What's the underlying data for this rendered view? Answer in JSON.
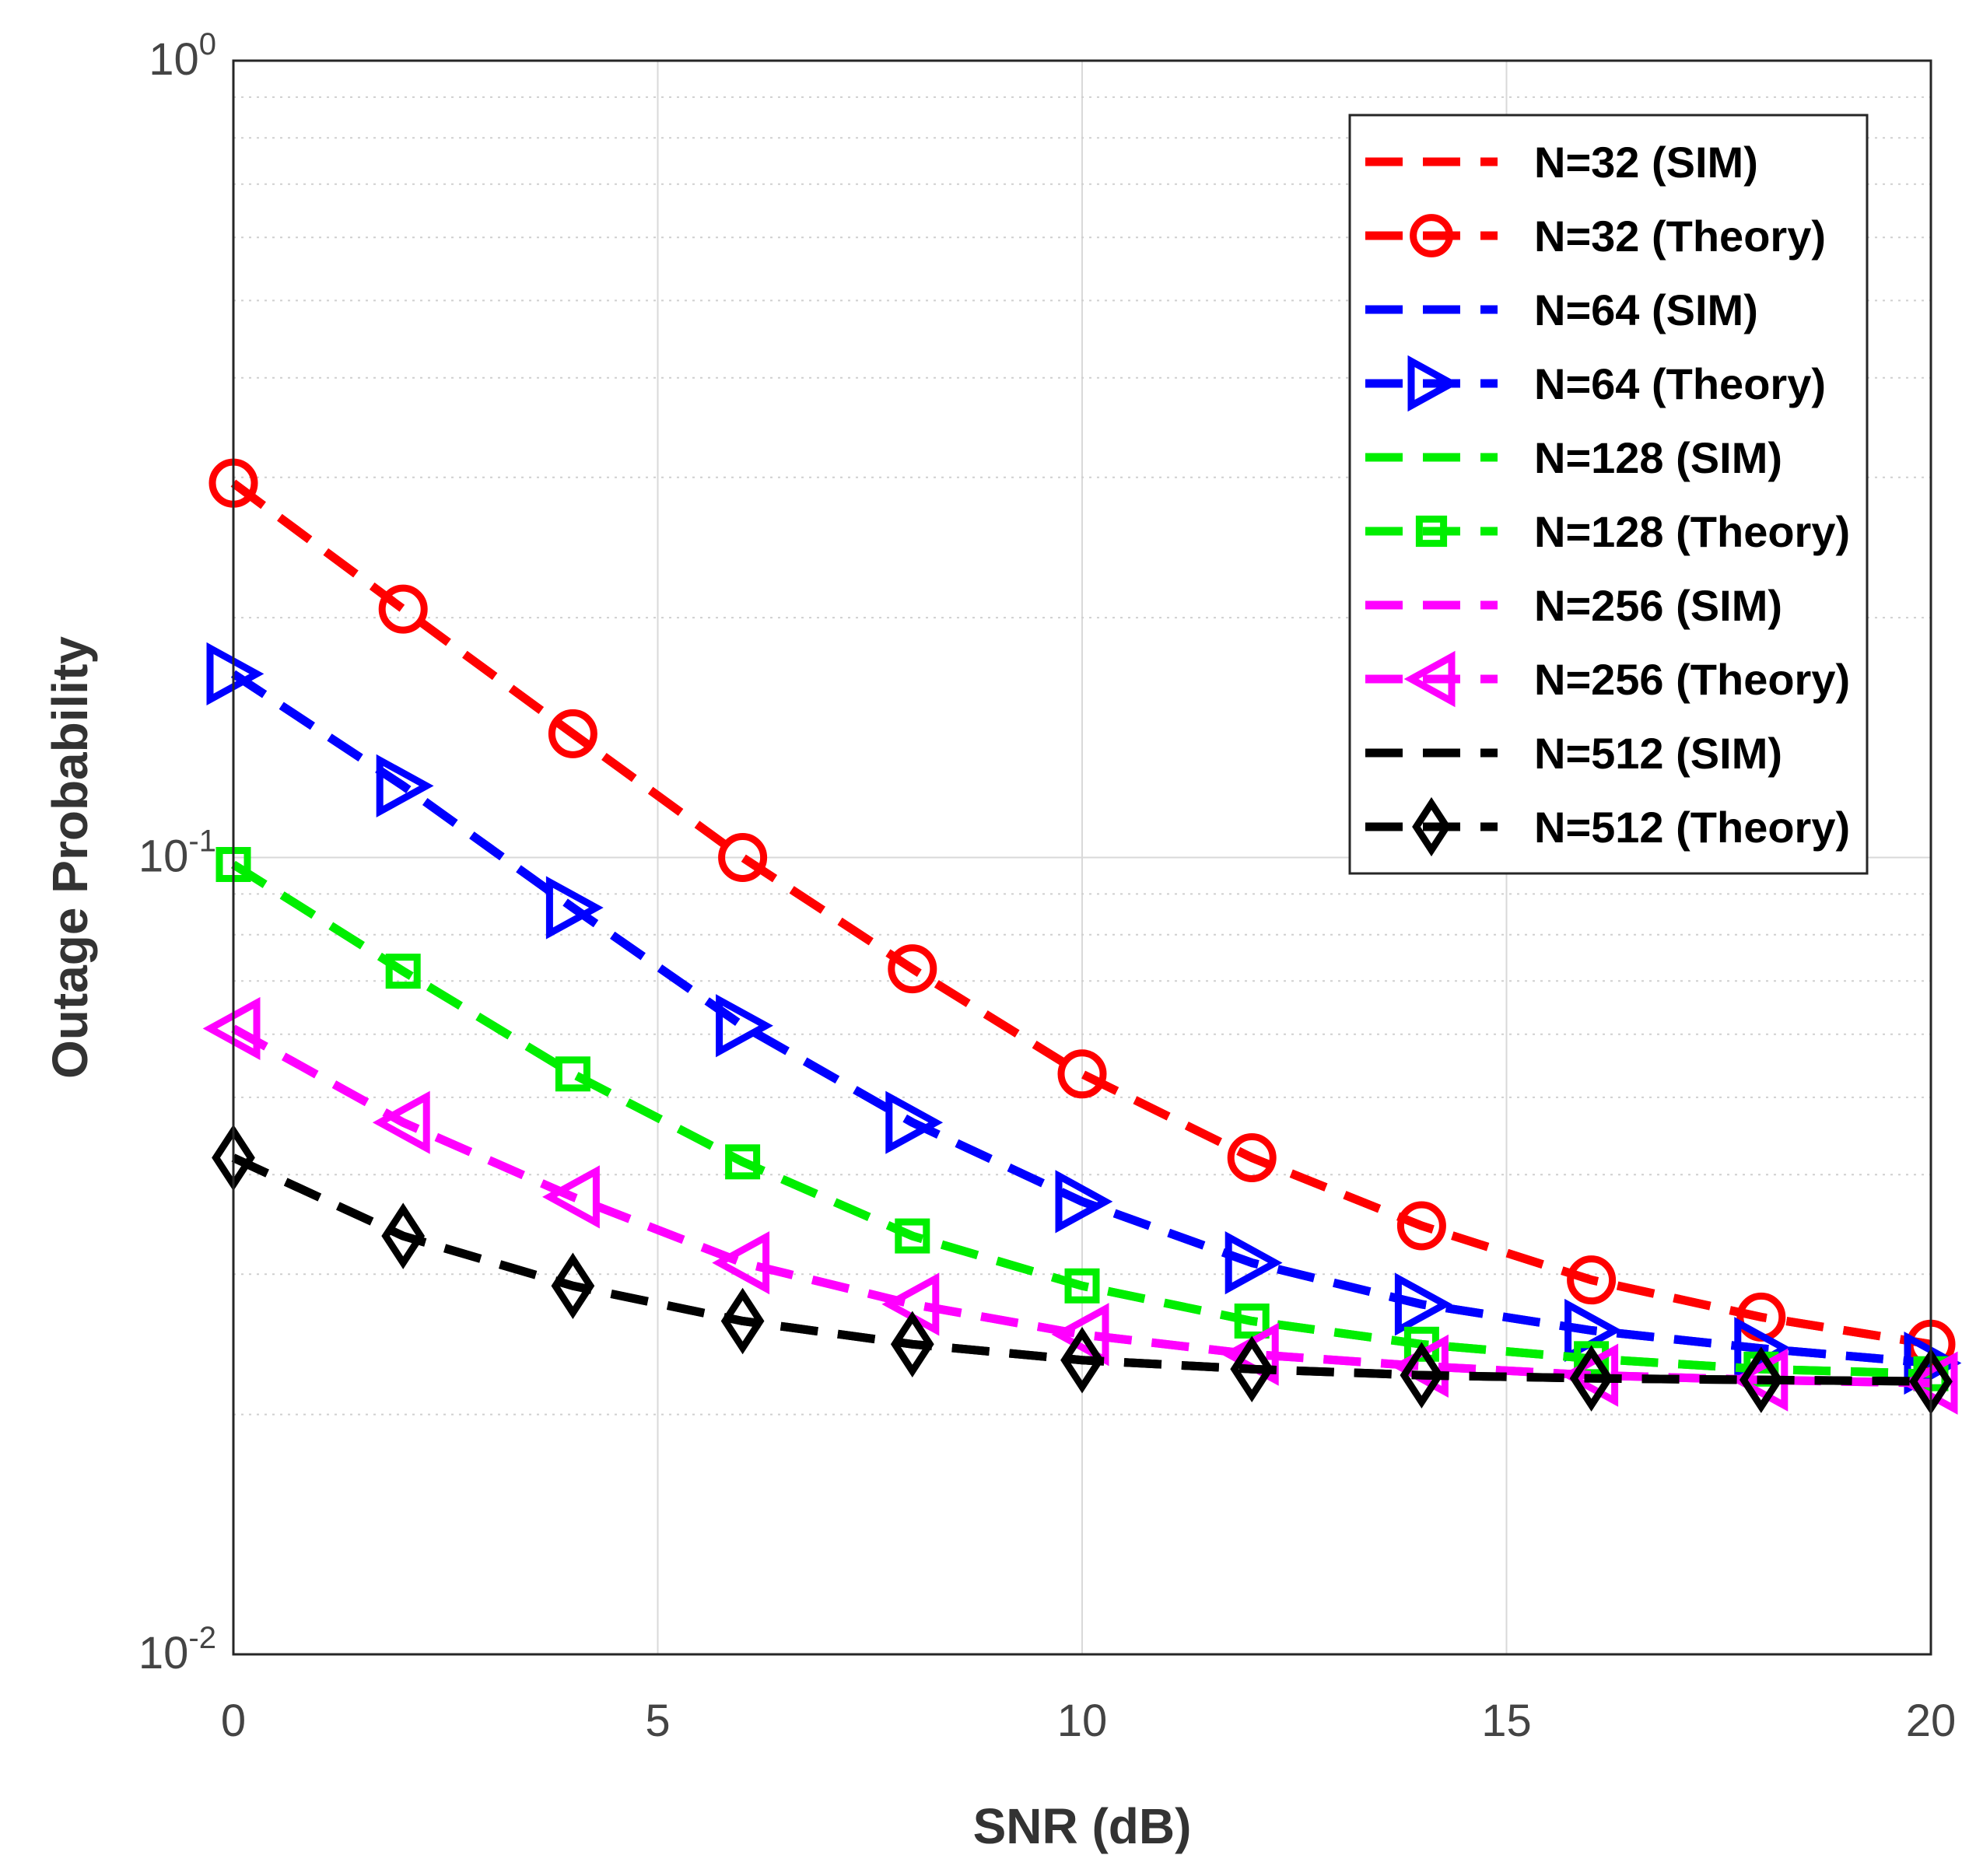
{
  "chart_data": {
    "type": "line",
    "xlabel": "SNR (dB)",
    "ylabel": "Outage Probability",
    "xscale": "linear",
    "yscale": "log",
    "xlim": [
      0,
      20
    ],
    "ylim": [
      0.01,
      1
    ],
    "xticks": [
      0,
      5,
      10,
      15,
      20
    ],
    "xtick_labels": [
      "0",
      "5",
      "10",
      "15",
      "20"
    ],
    "yticks": [
      {
        "value": 1,
        "base": "10",
        "exp": "0"
      },
      {
        "value": 0.1,
        "base": "10",
        "exp": "-1"
      },
      {
        "value": 0.01,
        "base": "10",
        "exp": "-2"
      }
    ],
    "grid": true,
    "legend_position": "top-right",
    "x": [
      0,
      2,
      4,
      6,
      8,
      10,
      12,
      14,
      16,
      18,
      20
    ],
    "series": [
      {
        "name": "N=32 (SIM)",
        "color": "#ff0000",
        "marker": "none",
        "values": [
          0.295,
          0.205,
          0.143,
          0.1,
          0.0725,
          0.0535,
          0.042,
          0.0345,
          0.0295,
          0.0265,
          0.0245
        ]
      },
      {
        "name": "N=32 (Theory)",
        "color": "#ff0000",
        "marker": "circle",
        "values": [
          0.295,
          0.205,
          0.143,
          0.1,
          0.0725,
          0.0535,
          0.042,
          0.0345,
          0.0295,
          0.0265,
          0.0245
        ]
      },
      {
        "name": "N=64 (SIM)",
        "color": "#0000ff",
        "marker": "none",
        "values": [
          0.17,
          0.123,
          0.0865,
          0.0615,
          0.0465,
          0.037,
          0.031,
          0.0275,
          0.0255,
          0.0242,
          0.0232
        ]
      },
      {
        "name": "N=64 (Theory)",
        "color": "#0000ff",
        "marker": "triangle-right",
        "values": [
          0.17,
          0.123,
          0.0865,
          0.0615,
          0.0465,
          0.037,
          0.031,
          0.0275,
          0.0255,
          0.0242,
          0.0232
        ]
      },
      {
        "name": "N=128 (SIM)",
        "color": "#00ee00",
        "marker": "none",
        "values": [
          0.098,
          0.072,
          0.0535,
          0.0415,
          0.0335,
          0.029,
          0.0262,
          0.0245,
          0.0235,
          0.0228,
          0.0225
        ]
      },
      {
        "name": "N=128 (Theory)",
        "color": "#00ee00",
        "marker": "square",
        "values": [
          0.098,
          0.072,
          0.0535,
          0.0415,
          0.0335,
          0.029,
          0.0262,
          0.0245,
          0.0235,
          0.0228,
          0.0225
        ]
      },
      {
        "name": "N=256 (SIM)",
        "color": "#ff00ff",
        "marker": "none",
        "values": [
          0.061,
          0.0465,
          0.0375,
          0.031,
          0.0275,
          0.0252,
          0.0238,
          0.023,
          0.0224,
          0.0221,
          0.0219
        ]
      },
      {
        "name": "N=256 (Theory)",
        "color": "#ff00ff",
        "marker": "triangle-left",
        "values": [
          0.061,
          0.0465,
          0.0375,
          0.031,
          0.0275,
          0.0252,
          0.0238,
          0.023,
          0.0224,
          0.0221,
          0.0219
        ]
      },
      {
        "name": "N=512 (SIM)",
        "color": "#000000",
        "marker": "none",
        "values": [
          0.042,
          0.0335,
          0.029,
          0.0262,
          0.0245,
          0.0234,
          0.0228,
          0.0224,
          0.0222,
          0.0221,
          0.022
        ]
      },
      {
        "name": "N=512 (Theory)",
        "color": "#000000",
        "marker": "diamond",
        "values": [
          0.042,
          0.0335,
          0.029,
          0.0262,
          0.0245,
          0.0234,
          0.0228,
          0.0224,
          0.0222,
          0.0221,
          0.022
        ]
      }
    ]
  }
}
